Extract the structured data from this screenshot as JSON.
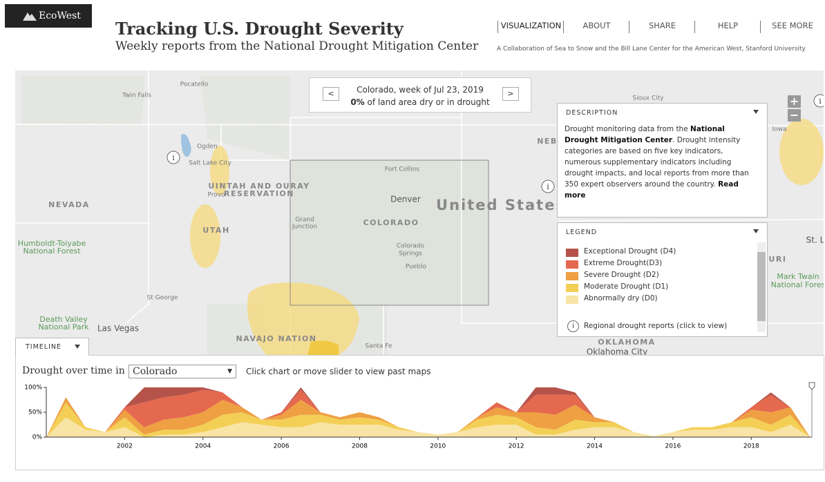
{
  "header": {
    "logo": "EcoWest",
    "title": "Tracking U.S. Drought Severity",
    "subtitle": "Weekly reports from the National Drought Mitigation Center",
    "nav": [
      "VISUALIZATION",
      "ABOUT",
      "SHARE",
      "HELP",
      "SEE MORE"
    ],
    "collaboration": "A Collaboration of Sea to Snow and the Bill Lane Center for the American West, Stanford University"
  },
  "map": {
    "info_box": {
      "prev": "<",
      "next": ">",
      "line1": "Colorado, week of Jul 23, 2019",
      "percent": "0%",
      "line2": "of land area dry or in drought"
    },
    "zoom": [
      "+",
      "−"
    ],
    "labels": [
      "Twin Falls",
      "Pocatello",
      "Ogden",
      "Salt Lake City",
      "Provo",
      "UINTAH AND OURAY",
      "RESERVATION",
      "NEVADA",
      "UTAH",
      "Humboldt-Toiyabe",
      "National Forest",
      "St George",
      "Death Valley",
      "National Park",
      "Las Vegas",
      "NAVAJO NATION",
      "Santa Fe",
      "Fort Collins",
      "Denver",
      "Grand",
      "Junction",
      "COLORADO",
      "Colorado",
      "Springs",
      "Pueblo",
      "United States",
      "Sioux City",
      "NEB",
      "OKLAHOMA",
      "Oklahoma City",
      "Iowa",
      "St. L",
      "OURI",
      "Mark Twain",
      "National Fores"
    ]
  },
  "description": {
    "title": "DESCRIPTION",
    "text_start": "Drought monitoring data from the",
    "link": "National Drought Mitigation Center",
    "text_end": ". Drought intensity categories are based on five key indicators, numerous supplementary indicators including drought impacts, and local reports from more than 350 expert observers around the country.",
    "read_more": "Read more"
  },
  "legend": {
    "title": "LEGEND",
    "regional": "Regional drought reports (click to view)"
  },
  "timeline": {
    "tab": "TIMELINE",
    "label": "Drought over time in",
    "select": "Colorado",
    "hint": "Click chart or move slider to view past maps",
    "chart": {
      "type": "area",
      "stacked": true,
      "x": [
        2000,
        2000.5,
        2001,
        2001.5,
        2002,
        2002.5,
        2003,
        2003.5,
        2004,
        2004.5,
        2005,
        2005.5,
        2006,
        2006.5,
        2007,
        2007.5,
        2008,
        2008.5,
        2009,
        2009.5,
        2010,
        2010.5,
        2011,
        2011.5,
        2012,
        2012.5,
        2013,
        2013.5,
        2014,
        2014.5,
        2015,
        2015.5,
        2016,
        2016.5,
        2017,
        2017.5,
        2018,
        2018.5,
        2019,
        2019.5
      ],
      "series": [
        {
          "name": "Abnormally dry (D0)",
          "color": "#f8e4a4",
          "values": [
            0,
            40,
            15,
            10,
            20,
            0,
            5,
            5,
            10,
            20,
            30,
            25,
            20,
            20,
            30,
            25,
            25,
            25,
            15,
            10,
            5,
            10,
            20,
            25,
            25,
            5,
            5,
            15,
            20,
            20,
            10,
            2,
            10,
            15,
            15,
            20,
            20,
            10,
            25,
            0
          ]
        },
        {
          "name": "Moderate Drought (D1)",
          "color": "#f4cf56",
          "values": [
            0,
            30,
            5,
            0,
            20,
            5,
            10,
            10,
            15,
            25,
            20,
            10,
            15,
            25,
            15,
            10,
            15,
            10,
            5,
            0,
            0,
            0,
            15,
            20,
            15,
            15,
            10,
            20,
            10,
            10,
            0,
            0,
            0,
            5,
            5,
            10,
            20,
            15,
            20,
            0
          ]
        },
        {
          "name": "Severe Drought (D2)",
          "color": "#eea042",
          "values": [
            0,
            10,
            0,
            0,
            15,
            15,
            20,
            25,
            25,
            30,
            10,
            0,
            10,
            30,
            5,
            5,
            10,
            5,
            0,
            0,
            0,
            0,
            5,
            15,
            10,
            30,
            30,
            30,
            10,
            0,
            0,
            0,
            0,
            0,
            0,
            0,
            15,
            25,
            15,
            0
          ]
        },
        {
          "name": "Extreme Drought(D3)",
          "color": "#e5694e",
          "values": [
            0,
            0,
            0,
            0,
            5,
            50,
            45,
            45,
            45,
            15,
            0,
            0,
            5,
            20,
            0,
            0,
            0,
            0,
            0,
            0,
            0,
            0,
            0,
            10,
            0,
            35,
            40,
            20,
            0,
            0,
            0,
            0,
            0,
            0,
            0,
            0,
            5,
            35,
            0,
            0
          ]
        },
        {
          "name": "Exceptional Drought (D4)",
          "color": "#b5534a",
          "values": [
            0,
            0,
            0,
            0,
            0,
            30,
            20,
            15,
            5,
            0,
            0,
            0,
            0,
            5,
            0,
            0,
            0,
            0,
            0,
            0,
            0,
            0,
            0,
            0,
            0,
            15,
            15,
            5,
            0,
            0,
            0,
            0,
            0,
            0,
            0,
            0,
            0,
            5,
            0,
            0
          ]
        }
      ],
      "xlim": [
        2000,
        2019.6
      ],
      "xticks": [
        2002,
        2004,
        2006,
        2008,
        2010,
        2012,
        2014,
        2016,
        2018
      ],
      "ylim": [
        0,
        100
      ],
      "yticks": [
        {
          "value": 0,
          "label": "0%"
        },
        {
          "value": 50,
          "label": "50%"
        },
        {
          "value": 100,
          "label": "100%"
        }
      ]
    }
  }
}
